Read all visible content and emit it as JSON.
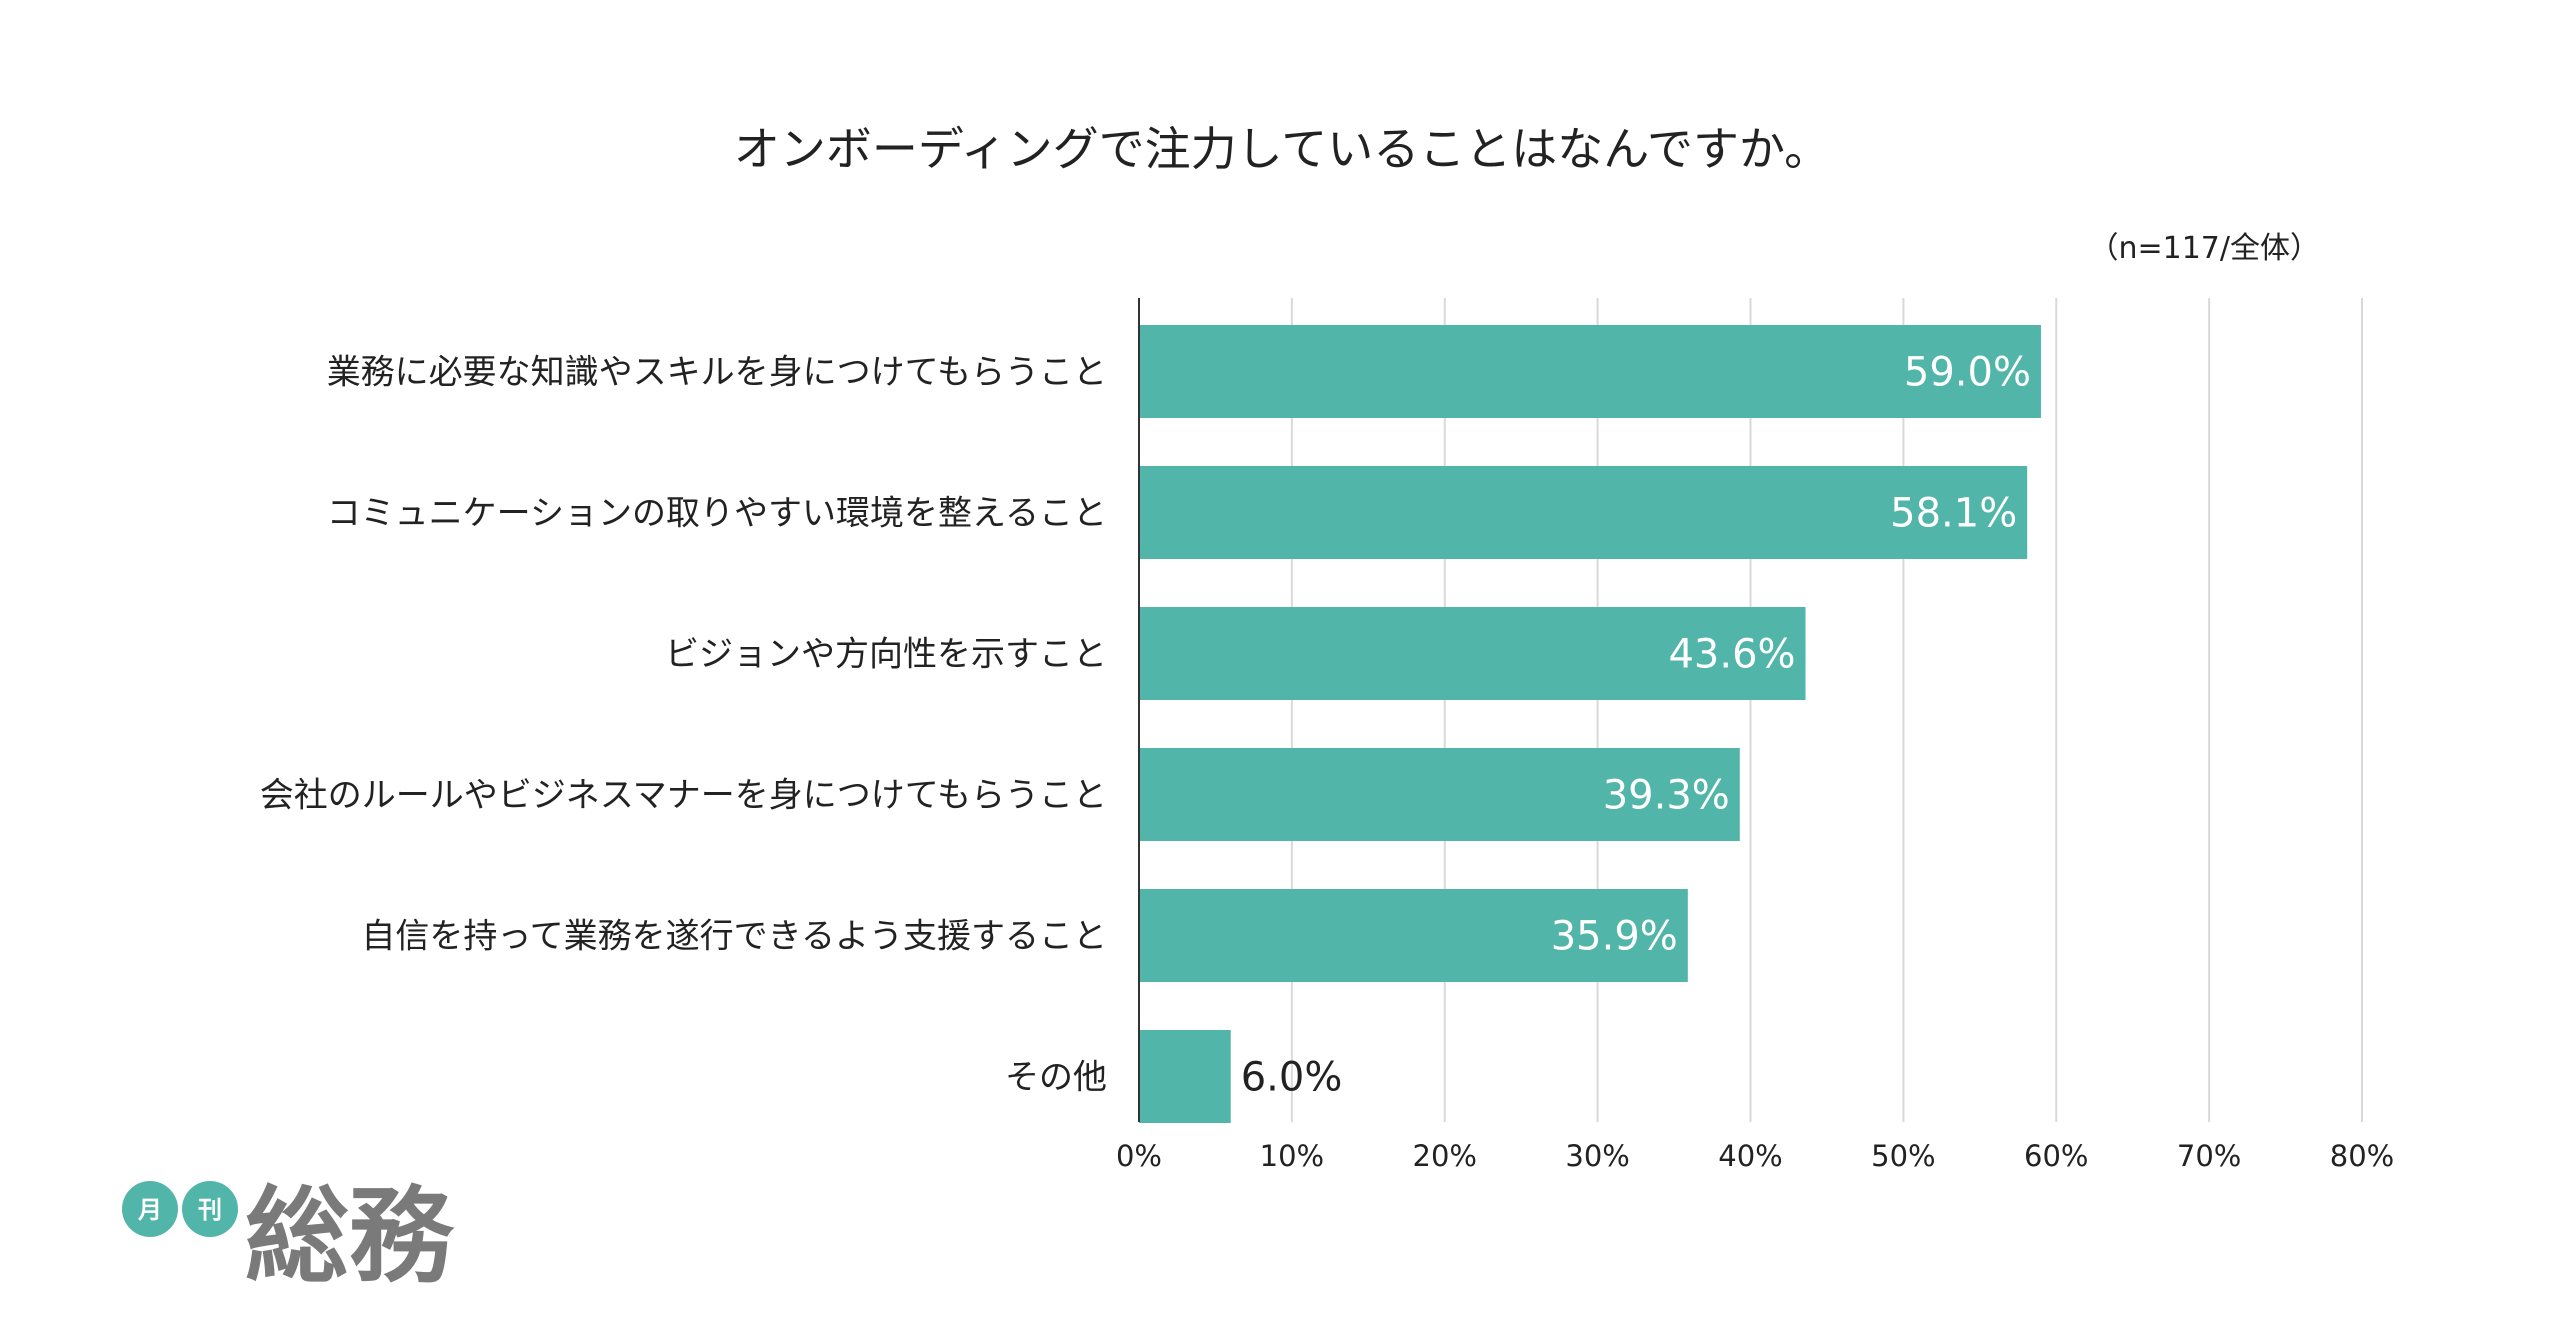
{
  "chart_data": {
    "type": "bar",
    "orientation": "horizontal",
    "title": "オンボーディングで注力していることはなんですか。",
    "note": "（n=117/全体）",
    "categories": [
      "業務に必要な知識やスキルを身につけてもらうこと",
      "コミュニケーションの取りやすい環境を整えること",
      "ビジョンや方向性を示すこと",
      "会社のルールやビジネスマナーを身につけてもらうこと",
      "自信を持って業務を遂行できるよう支援すること",
      "その他"
    ],
    "values": [
      59.0,
      58.1,
      43.6,
      39.3,
      35.9,
      6.0
    ],
    "value_labels": [
      "59.0%",
      "58.1%",
      "43.6%",
      "39.3%",
      "35.9%",
      "6.0%"
    ],
    "xlim": [
      0,
      80
    ],
    "xticks": [
      0,
      10,
      20,
      30,
      40,
      50,
      60,
      70,
      80
    ],
    "xtick_labels": [
      "0%",
      "10%",
      "20%",
      "30%",
      "40%",
      "50%",
      "60%",
      "70%",
      "80%"
    ],
    "grid": true,
    "bar_color": "#52b5a9",
    "grid_color": "#d9d9d9",
    "axis_color": "#333333"
  },
  "logo": {
    "circle_1": "月",
    "circle_2": "刊",
    "name": "総務",
    "circle_color": "#52b5a9",
    "text_color": "#7a7a7a"
  }
}
